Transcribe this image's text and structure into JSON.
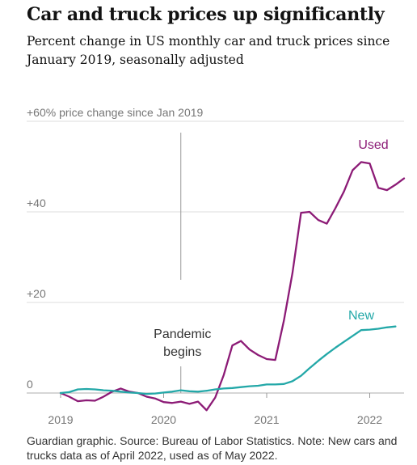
{
  "title": "Car and truck prices up significantly",
  "subtitle": "Percent change in US monthly car and truck prices since January 2019, seasonally adjusted",
  "footnote": "Guardian graphic. Source: Bureau of Labor Statistics. Note: New cars and trucks data as of April 2022, used as of May 2022.",
  "chart_data": {
    "type": "line",
    "title": "Car and truck prices up significantly",
    "ylabel": "+60% price change since Jan 2019",
    "xlabel": "",
    "x_ticks": [
      "2019",
      "2020",
      "2021",
      "2022"
    ],
    "y_ticks": [
      {
        "value": 0,
        "label": "0"
      },
      {
        "value": 20,
        "label": "+20"
      },
      {
        "value": 40,
        "label": "+40"
      },
      {
        "value": 60,
        "label": "+60% price change since Jan 2019"
      }
    ],
    "ylim": [
      -4,
      60
    ],
    "xlim": [
      "2019-01",
      "2022-06"
    ],
    "grid": true,
    "annotation": {
      "text_lines": [
        "Pandemic",
        "begins"
      ],
      "x": "2020-03"
    },
    "series": [
      {
        "name": "Used",
        "color": "#8c1b76",
        "x": [
          "2019-01",
          "2019-02",
          "2019-03",
          "2019-04",
          "2019-05",
          "2019-06",
          "2019-07",
          "2019-08",
          "2019-09",
          "2019-10",
          "2019-11",
          "2019-12",
          "2020-01",
          "2020-02",
          "2020-03",
          "2020-04",
          "2020-05",
          "2020-06",
          "2020-07",
          "2020-08",
          "2020-09",
          "2020-10",
          "2020-11",
          "2020-12",
          "2021-01",
          "2021-02",
          "2021-03",
          "2021-04",
          "2021-05",
          "2021-06",
          "2021-07",
          "2021-08",
          "2021-09",
          "2021-10",
          "2021-11",
          "2021-12",
          "2022-01",
          "2022-02",
          "2022-03",
          "2022-04",
          "2022-05"
        ],
        "values": [
          0,
          -0.8,
          -1.8,
          -1.6,
          -1.7,
          -0.8,
          0.3,
          1.0,
          0.3,
          0.0,
          -0.8,
          -1.2,
          -2.0,
          -2.2,
          -1.9,
          -2.4,
          -1.9,
          -3.8,
          -1.0,
          4.0,
          10.5,
          11.5,
          9.6,
          8.4,
          7.5,
          7.3,
          16.0,
          26.5,
          39.8,
          40.0,
          38.2,
          37.4,
          40.8,
          44.5,
          49.2,
          51.0,
          50.7,
          45.3,
          44.8,
          46.0,
          47.4
        ]
      },
      {
        "name": "New",
        "color": "#23a8a8",
        "x": [
          "2019-01",
          "2019-02",
          "2019-03",
          "2019-04",
          "2019-05",
          "2019-06",
          "2019-07",
          "2019-08",
          "2019-09",
          "2019-10",
          "2019-11",
          "2019-12",
          "2020-01",
          "2020-02",
          "2020-03",
          "2020-04",
          "2020-05",
          "2020-06",
          "2020-07",
          "2020-08",
          "2020-09",
          "2020-10",
          "2020-11",
          "2020-12",
          "2021-01",
          "2021-02",
          "2021-03",
          "2021-04",
          "2021-05",
          "2021-06",
          "2021-07",
          "2021-08",
          "2021-09",
          "2021-10",
          "2021-11",
          "2021-12",
          "2022-01",
          "2022-02",
          "2022-03",
          "2022-04"
        ],
        "values": [
          0,
          0.2,
          0.8,
          0.9,
          0.8,
          0.6,
          0.5,
          0.3,
          0.1,
          0.0,
          -0.2,
          -0.1,
          0.1,
          0.3,
          0.6,
          0.4,
          0.3,
          0.5,
          0.8,
          1.0,
          1.1,
          1.3,
          1.5,
          1.6,
          1.9,
          1.9,
          2.0,
          2.6,
          3.8,
          5.5,
          7.1,
          8.6,
          10.0,
          11.3,
          12.6,
          13.9,
          14.0,
          14.2,
          14.5,
          14.7
        ]
      }
    ]
  }
}
